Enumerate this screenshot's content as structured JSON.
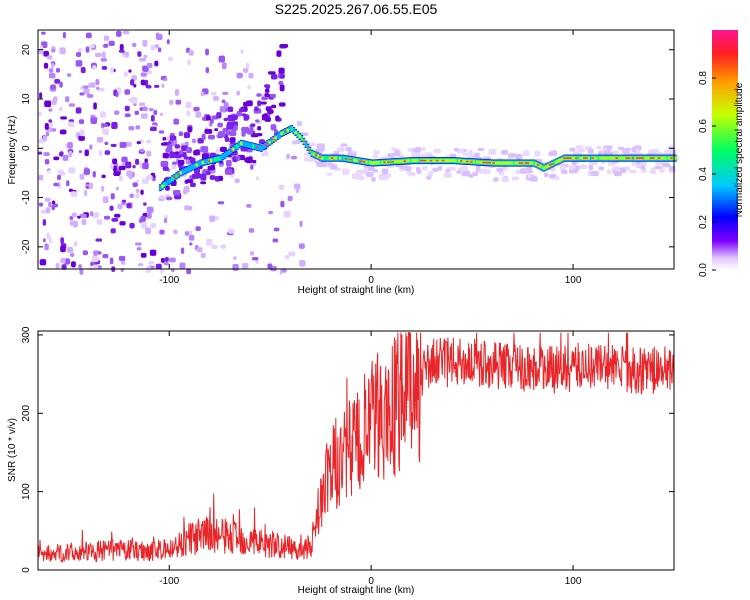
{
  "title": "S225.2025.267.06.55.E05",
  "chart_data": [
    {
      "type": "heatmap",
      "xlabel": "Height of straight line (km)",
      "ylabel": "Frequency (Hz)",
      "xlim": [
        -165,
        150
      ],
      "ylim": [
        -24.5,
        24
      ],
      "xticks": [
        -100,
        0,
        100
      ],
      "yticks": [
        -20,
        -10,
        0,
        10,
        20
      ],
      "colorbar": {
        "label": "Normalized spectral amplitude",
        "range": [
          0,
          1
        ],
        "ticks": [
          0.0,
          0.2,
          0.4,
          0.6,
          0.8
        ]
      },
      "ridge": {
        "x": [
          -105,
          -95,
          -85,
          -75,
          -65,
          -55,
          -45,
          -40,
          -35,
          -30,
          -25,
          -15,
          0,
          20,
          40,
          60,
          80,
          85,
          95,
          110,
          130,
          150
        ],
        "y": [
          -8,
          -5,
          -3,
          -2,
          1,
          0,
          3,
          4,
          2,
          -1,
          -2,
          -2,
          -3,
          -2.5,
          -2.5,
          -3,
          -3,
          -4,
          -2,
          -2,
          -2,
          -2
        ]
      }
    },
    {
      "type": "line",
      "xlabel": "Height of straight line (km)",
      "ylabel": "SNR (10 * v/v)",
      "xlim": [
        -165,
        150
      ],
      "ylim": [
        0,
        305
      ],
      "xticks": [
        -100,
        0,
        100
      ],
      "yticks": [
        0,
        100,
        200,
        300
      ],
      "color": "#e8262a",
      "envelope": {
        "x": [
          -165,
          -130,
          -100,
          -90,
          -80,
          -70,
          -60,
          -50,
          -40,
          -30,
          -28,
          -20,
          -10,
          0,
          10,
          20,
          30,
          50,
          70,
          90,
          110,
          130,
          150
        ],
        "y": [
          20,
          25,
          25,
          40,
          45,
          42,
          38,
          33,
          28,
          25,
          60,
          130,
          150,
          185,
          205,
          235,
          265,
          265,
          260,
          255,
          262,
          255,
          255
        ]
      }
    }
  ]
}
